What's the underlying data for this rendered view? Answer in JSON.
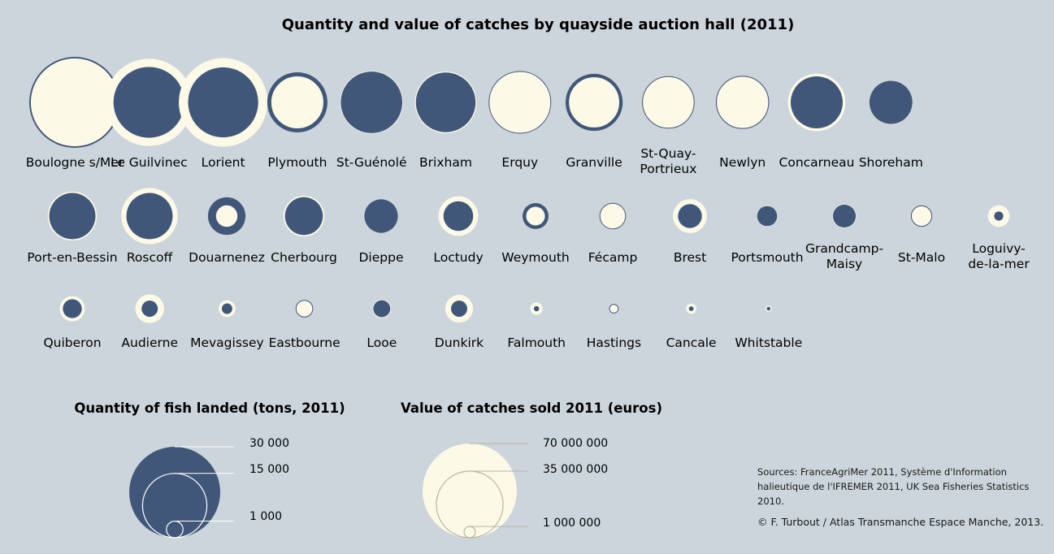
{
  "colors": {
    "background": "#ccd5db",
    "quantity_fill": "#41577a",
    "value_fill": "#fcf9e7",
    "legend_line": "#ffffff"
  },
  "chart_data": {
    "type": "proportional-circles",
    "title": "Quantity and value of catches by quayside auction hall (2011)",
    "encoding": "Two concentric circles per auction hall: dark blue circle = quantity of fish landed (tons); cream circle = value of catches sold (euros). The smaller circle is drawn on top.",
    "halls": [
      {
        "name": "Boulogne s/Mer",
        "label_lines": [
          "Boulogne s/Mer"
        ],
        "quantity_tons": 30000,
        "value_eur": 62000000
      },
      {
        "name": "Le Guilvinec",
        "label_lines": [
          "Le Guilvinec"
        ],
        "quantity_tons": 18200,
        "value_eur": 60000000
      },
      {
        "name": "Lorient",
        "label_lines": [
          "Lorient"
        ],
        "quantity_tons": 17800,
        "value_eur": 62000000
      },
      {
        "name": "Plymouth",
        "label_lines": [
          "Plymouth"
        ],
        "quantity_tons": 13100,
        "value_eur": 22000000
      },
      {
        "name": "St-Guénolé",
        "label_lines": [
          "St-Guénolé"
        ],
        "quantity_tons": 13700,
        "value_eur": 31000000
      },
      {
        "name": "Brixham",
        "label_lines": [
          "Brixham"
        ],
        "quantity_tons": 12900,
        "value_eur": 30000000
      },
      {
        "name": "Erquy",
        "label_lines": [
          "Erquy"
        ],
        "quantity_tons": 14000,
        "value_eur": 30000000
      },
      {
        "name": "Granville",
        "label_lines": [
          "Granville"
        ],
        "quantity_tons": 11800,
        "value_eur": 20500000
      },
      {
        "name": "St-Quay-Portrieux",
        "label_lines": [
          "St-Quay-",
          "Portrieux"
        ],
        "quantity_tons": 9800,
        "value_eur": 21000000
      },
      {
        "name": "Newlyn",
        "label_lines": [
          "Newlyn"
        ],
        "quantity_tons": 10200,
        "value_eur": 21500000
      },
      {
        "name": "Concarneau",
        "label_lines": [
          "Concarneau"
        ],
        "quantity_tons": 9800,
        "value_eur": 26000000
      },
      {
        "name": "Shoreham",
        "label_lines": [
          "Shoreham"
        ],
        "quantity_tons": 6700,
        "value_eur": 14700000
      },
      {
        "name": "Port-en-Bessin",
        "label_lines": [
          "Port-en-Bessin"
        ],
        "quantity_tons": 7750,
        "value_eur": 19000000
      },
      {
        "name": "Roscoff",
        "label_lines": [
          "Roscoff"
        ],
        "quantity_tons": 7750,
        "value_eur": 25000000
      },
      {
        "name": "Douarnenez",
        "label_lines": [
          "Douarnenez"
        ],
        "quantity_tons": 5100,
        "value_eur": 3900000
      },
      {
        "name": "Cherbourg",
        "label_lines": [
          "Cherbourg"
        ],
        "quantity_tons": 5200,
        "value_eur": 13200000
      },
      {
        "name": "Dieppe",
        "label_lines": [
          "Dieppe"
        ],
        "quantity_tons": 4100,
        "value_eur": 9100000
      },
      {
        "name": "Loctudy",
        "label_lines": [
          "Loctudy"
        ],
        "quantity_tons": 3200,
        "value_eur": 12400000
      },
      {
        "name": "Weymouth",
        "label_lines": [
          "Weymouth"
        ],
        "quantity_tons": 2450,
        "value_eur": 3000000
      },
      {
        "name": "Fécamp",
        "label_lines": [
          "Fécamp"
        ],
        "quantity_tons": 2450,
        "value_eur": 5200000
      },
      {
        "name": "Brest",
        "label_lines": [
          "Brest"
        ],
        "quantity_tons": 2070,
        "value_eur": 9100000
      },
      {
        "name": "Portsmouth",
        "label_lines": [
          "Portsmouth"
        ],
        "quantity_tons": 1450,
        "value_eur": 3300000
      },
      {
        "name": "Grandcamp-Maisy",
        "label_lines": [
          "Grandcamp-",
          "Maisy"
        ],
        "quantity_tons": 1900,
        "value_eur": 4500000
      },
      {
        "name": "St-Malo",
        "label_lines": [
          "St-Malo"
        ],
        "quantity_tons": 1600,
        "value_eur": 3300000
      },
      {
        "name": "Loguivy-de-la-mer",
        "label_lines": [
          "Loguivy-",
          "de-la-mer"
        ],
        "quantity_tons": 300,
        "value_eur": 3700000
      },
      {
        "name": "Quiberon",
        "label_lines": [
          "Quiberon"
        ],
        "quantity_tons": 1300,
        "value_eur": 5000000
      },
      {
        "name": "Audierne",
        "label_lines": [
          "Audierne"
        ],
        "quantity_tons": 950,
        "value_eur": 6500000
      },
      {
        "name": "Mevagissey",
        "label_lines": [
          "Mevagissey"
        ],
        "quantity_tons": 400,
        "value_eur": 2200000
      },
      {
        "name": "Eastbourne",
        "label_lines": [
          "Eastbourne"
        ],
        "quantity_tons": 1050,
        "value_eur": 2200000
      },
      {
        "name": "Looe",
        "label_lines": [
          "Looe"
        ],
        "quantity_tons": 1050,
        "value_eur": 2700000
      },
      {
        "name": "Dunkirk",
        "label_lines": [
          "Dunkirk"
        ],
        "quantity_tons": 950,
        "value_eur": 6100000
      },
      {
        "name": "Falmouth",
        "label_lines": [
          "Falmouth"
        ],
        "quantity_tons": 100,
        "value_eur": 1200000
      },
      {
        "name": "Hastings",
        "label_lines": [
          "Hastings"
        ],
        "quantity_tons": 290,
        "value_eur": 600000
      },
      {
        "name": "Cancale",
        "label_lines": [
          "Cancale"
        ],
        "quantity_tons": 80,
        "value_eur": 850000
      },
      {
        "name": "Whitstable",
        "label_lines": [
          "Whitstable"
        ],
        "quantity_tons": 50,
        "value_eur": 300000
      }
    ],
    "legend_quantity": {
      "title": "Quantity of fish landed (tons, 2011)",
      "values": [
        30000,
        15000,
        1000
      ],
      "labels": [
        "30 000",
        "15 000",
        "1 000"
      ]
    },
    "legend_value": {
      "title": "Value of catches sold 2011 (euros)",
      "values": [
        70000000,
        35000000,
        1000000
      ],
      "labels": [
        "70 000 000",
        "35 000 000",
        "1 000 000"
      ]
    }
  },
  "sources": "Sources: FranceAgriMer 2011, Système d'Information halieutique de  l'IFREMER 2011, UK Sea Fisheries Statistics 2010.",
  "copyright": "© F. Turbout / Atlas Transmanche Espace Manche, 2013."
}
